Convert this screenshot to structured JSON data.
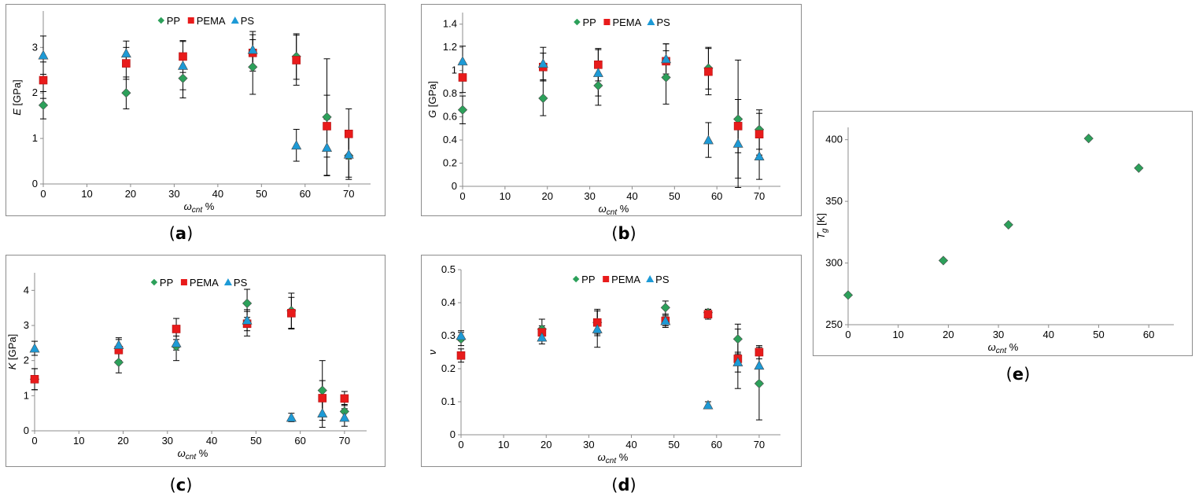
{
  "colors": {
    "PP": "#2ca05a",
    "PEMA": "#e81b1b",
    "PS": "#1d9ad6",
    "marker_edge": "#4a4a4a"
  },
  "chart_data": [
    {
      "id": "a",
      "label": "a",
      "type": "scatter",
      "ylabel_var": "E",
      "ylabel_unit": " [GPa]",
      "xlabel_var": "ω",
      "xlabel_sub": "cnt",
      "xlabel_unit": " %",
      "xlim": [
        0,
        75
      ],
      "ylim": [
        0,
        3.8
      ],
      "xticks": [
        0,
        10,
        20,
        30,
        40,
        50,
        60,
        70
      ],
      "yticks": [
        0,
        1,
        2,
        3
      ],
      "legend": [
        "PP",
        "PEMA",
        "PS"
      ],
      "series": [
        {
          "name": "PP",
          "x": [
            0,
            19,
            32,
            48,
            58,
            65,
            70
          ],
          "y": [
            1.73,
            2.0,
            2.32,
            2.57,
            2.8,
            1.47,
            0.62
          ],
          "err": [
            0.3,
            0.35,
            0.43,
            0.6,
            0.5,
            1.28,
            0.52
          ]
        },
        {
          "name": "PEMA",
          "x": [
            0,
            19,
            32,
            48,
            58,
            65,
            70
          ],
          "y": [
            2.28,
            2.65,
            2.8,
            2.88,
            2.72,
            1.27,
            1.1
          ],
          "err": [
            0.4,
            0.35,
            0.35,
            0.4,
            0.55,
            0.68,
            0.55
          ]
        },
        {
          "name": "PS",
          "x": [
            0,
            19,
            32,
            48,
            58,
            65,
            70
          ],
          "y": [
            2.83,
            2.87,
            2.6,
            2.95,
            0.85,
            0.8,
            0.65
          ],
          "err": [
            0.42,
            0.27,
            0.53,
            0.4,
            0.35,
            0.62,
            0.5
          ]
        }
      ]
    },
    {
      "id": "b",
      "label": "b",
      "type": "scatter",
      "ylabel_var": "G",
      "ylabel_unit": " [GPa]",
      "xlabel_var": "ω",
      "xlabel_sub": "cnt",
      "xlabel_unit": " %",
      "xlim": [
        0,
        75
      ],
      "ylim": [
        0,
        1.5
      ],
      "xticks": [
        0,
        10,
        20,
        30,
        40,
        50,
        60,
        70
      ],
      "yticks": [
        0,
        0.2,
        0.4,
        0.6,
        0.8,
        1,
        1.2,
        1.4
      ],
      "legend": [
        "PP",
        "PEMA",
        "PS"
      ],
      "series": [
        {
          "name": "PP",
          "x": [
            0,
            19,
            32,
            48,
            58,
            65,
            70
          ],
          "y": [
            0.66,
            0.76,
            0.87,
            0.94,
            1.02,
            0.58,
            0.49
          ],
          "err": [
            0.12,
            0.15,
            0.17,
            0.23,
            0.18,
            0.51,
            0.17
          ]
        },
        {
          "name": "PEMA",
          "x": [
            0,
            19,
            32,
            48,
            58,
            65,
            70
          ],
          "y": [
            0.94,
            1.03,
            1.05,
            1.08,
            0.99,
            0.52,
            0.45
          ],
          "err": [
            0.13,
            0.12,
            0.14,
            0.15,
            0.2,
            0.23,
            0.18
          ]
        },
        {
          "name": "PS",
          "x": [
            0,
            19,
            32,
            48,
            58,
            65,
            70
          ],
          "y": [
            1.08,
            1.06,
            0.98,
            1.1,
            0.4,
            0.37,
            0.26
          ],
          "err": [
            0.13,
            0.14,
            0.2,
            0.13,
            0.15,
            0.38,
            0.2
          ]
        }
      ]
    },
    {
      "id": "c",
      "label": "c",
      "type": "scatter",
      "ylabel_var": "K",
      "ylabel_unit": " [GPa]",
      "xlabel_var": "ω",
      "xlabel_sub": "cnt",
      "xlabel_unit": " %",
      "xlim": [
        0,
        75
      ],
      "ylim": [
        0,
        4.5
      ],
      "xticks": [
        0,
        10,
        20,
        30,
        40,
        50,
        60,
        70
      ],
      "yticks": [
        0,
        1,
        2,
        3,
        4
      ],
      "legend": [
        "PP",
        "PEMA",
        "PS"
      ],
      "series": [
        {
          "name": "PP",
          "x": [
            0,
            19,
            32,
            48,
            58,
            65,
            70
          ],
          "y": [
            1.47,
            1.95,
            2.4,
            3.63,
            3.42,
            1.15,
            0.55
          ],
          "err": [
            0.3,
            0.3,
            0.4,
            0.4,
            0.5,
            0.85,
            0.2
          ]
        },
        {
          "name": "PEMA",
          "x": [
            0,
            19,
            32,
            48,
            58,
            65,
            70
          ],
          "y": [
            1.47,
            2.3,
            2.9,
            3.05,
            3.35,
            0.93,
            0.92
          ],
          "err": [
            0.3,
            0.3,
            0.3,
            0.35,
            0.45,
            0.5,
            0.2
          ]
        },
        {
          "name": "PS",
          "x": [
            0,
            19,
            32,
            48,
            58,
            65,
            70
          ],
          "y": [
            2.35,
            2.45,
            2.5,
            3.15,
            0.38,
            0.5,
            0.38
          ],
          "err": [
            0.2,
            0.2,
            0.2,
            0.3,
            0.12,
            0.4,
            0.25
          ]
        }
      ]
    },
    {
      "id": "d",
      "label": "d",
      "type": "scatter",
      "ylabel_var": "ν",
      "ylabel_unit": "",
      "xlabel_var": "ω",
      "xlabel_sub": "cnt",
      "xlabel_unit": " %",
      "xlim": [
        0,
        75
      ],
      "ylim": [
        0,
        0.5
      ],
      "xticks": [
        0,
        10,
        20,
        30,
        40,
        50,
        60,
        70
      ],
      "yticks": [
        0,
        0.1,
        0.2,
        0.3,
        0.4,
        0.5
      ],
      "legend": [
        "PP",
        "PEMA",
        "PS"
      ],
      "series": [
        {
          "name": "PP",
          "x": [
            0,
            19,
            32,
            48,
            58,
            65,
            70
          ],
          "y": [
            0.29,
            0.32,
            0.34,
            0.385,
            0.37,
            0.29,
            0.155
          ],
          "err": [
            0.02,
            0.03,
            0.04,
            0.02,
            0.01,
            0.045,
            0.11
          ]
        },
        {
          "name": "PEMA",
          "x": [
            0,
            19,
            32,
            48,
            58,
            65,
            70
          ],
          "y": [
            0.24,
            0.31,
            0.34,
            0.345,
            0.365,
            0.23,
            0.25
          ],
          "err": [
            0.02,
            0.02,
            0.035,
            0.02,
            0.015,
            0.09,
            0.02
          ]
        },
        {
          "name": "PS",
          "x": [
            0,
            19,
            32,
            48,
            58,
            65,
            70
          ],
          "y": [
            0.3,
            0.295,
            0.32,
            0.345,
            0.09,
            0.22,
            0.21
          ],
          "err": [
            0.015,
            0.02,
            0.055,
            0.015,
            0.01,
            0.03,
            0.05
          ]
        }
      ]
    },
    {
      "id": "e",
      "label": "e",
      "type": "scatter",
      "ylabel_var": "T",
      "ylabel_sub": "g",
      "ylabel_unit": " [K]",
      "xlabel_var": "ω",
      "xlabel_sub": "cnt",
      "xlabel_unit": " %",
      "xlim": [
        0,
        65
      ],
      "ylim": [
        250,
        410
      ],
      "xticks": [
        0,
        10,
        20,
        30,
        40,
        50,
        60
      ],
      "yticks": [
        250,
        300,
        350,
        400
      ],
      "legend": [],
      "series": [
        {
          "name": "PP",
          "x": [
            0,
            19,
            32,
            48,
            58
          ],
          "y": [
            274,
            302,
            331,
            401,
            377
          ]
        }
      ]
    }
  ]
}
